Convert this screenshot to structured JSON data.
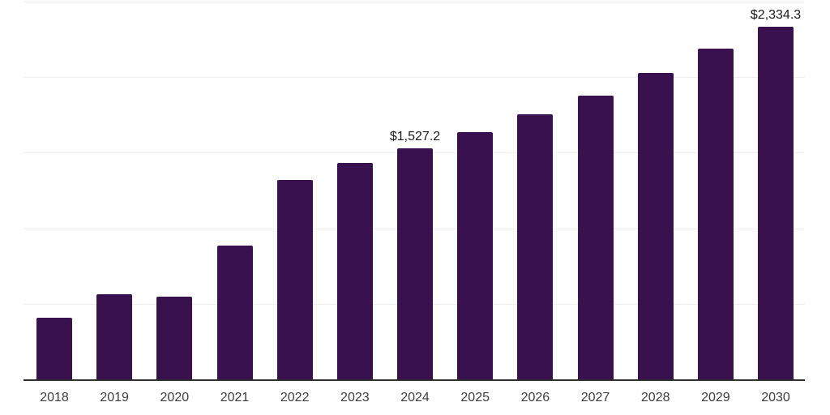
{
  "chart_style": {
    "background": "#ffffff",
    "bar_color": "#38114e",
    "grid_color": "#f0f0f0",
    "axis_color": "#2f2f2f",
    "tick_label_color": "#3d3d3d",
    "value_label_color": "#1a1a1a"
  },
  "chart_data": {
    "type": "bar",
    "title": "",
    "xlabel": "",
    "ylabel": "",
    "categories": [
      "2018",
      "2019",
      "2020",
      "2021",
      "2022",
      "2023",
      "2024",
      "2025",
      "2026",
      "2027",
      "2028",
      "2029",
      "2030"
    ],
    "values": [
      406,
      566,
      545,
      887,
      1320,
      1432,
      1527.2,
      1635,
      1755,
      1880,
      2028,
      2190,
      2334.3
    ],
    "data_labels": {
      "2024": "$1,527.2",
      "2030": "$2,334.3"
    },
    "value_prefix": "$",
    "ylim": [
      0,
      2500
    ],
    "gridline_values": [
      500,
      1000,
      1500,
      2000,
      2500
    ],
    "grid": "horizontal",
    "legend": false,
    "y_axis_labels_visible": false
  }
}
